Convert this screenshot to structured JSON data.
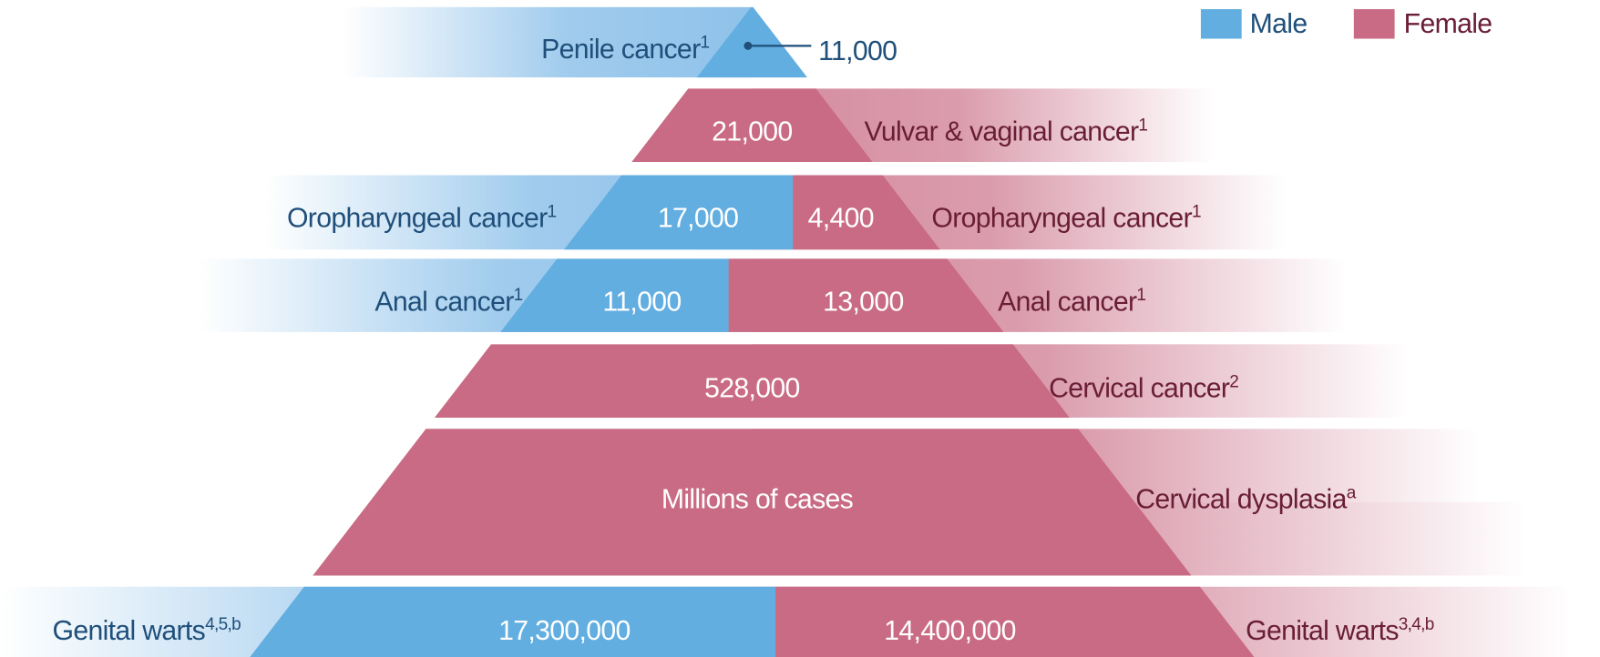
{
  "legend": {
    "male": "Male",
    "female": "Female"
  },
  "rows": [
    {
      "male_label": "Penile cancer",
      "male_sup": "1",
      "male_value": "11,000"
    },
    {
      "female_value": "21,000",
      "female_label": "Vulvar & vaginal cancer",
      "female_sup": "1"
    },
    {
      "male_label": "Oropharyngeal cancer",
      "male_sup": "1",
      "male_value": "17,000",
      "female_value": "4,400",
      "female_label": "Oropharyngeal cancer",
      "female_sup": "1"
    },
    {
      "male_label": "Anal cancer",
      "male_sup": "1",
      "male_value": "11,000",
      "female_value": "13,000",
      "female_label": "Anal cancer",
      "female_sup": "1"
    },
    {
      "female_value": "528,000",
      "female_label": "Cervical cancer",
      "female_sup": "2"
    },
    {
      "female_value": "Millions of cases",
      "female_label": "Cervical dysplasia",
      "female_sup": "a"
    },
    {
      "male_label": "Genital warts",
      "male_sup": "4,5,b",
      "male_value": "17,300,000",
      "female_value": "14,400,000",
      "female_label": "Genital warts",
      "female_sup": "3,4,b"
    }
  ]
}
